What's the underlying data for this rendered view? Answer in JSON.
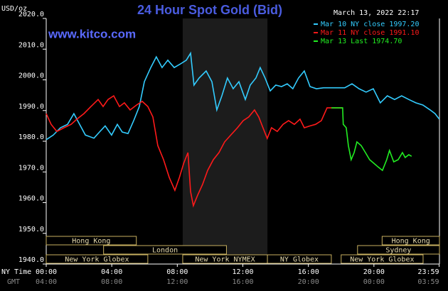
{
  "chart_data": {
    "type": "line",
    "title": "24 Hour Spot Gold (Bid)",
    "unit_label": "USD/oz",
    "timestamp": "March 13, 2022 22:17",
    "site": "www.kitco.com",
    "x_axis_labels": [
      "NY Time",
      "GMT"
    ],
    "xlim": [
      0,
      24
    ],
    "ylim": [
      1940,
      2020
    ],
    "yticks": [
      {
        "value": 2020,
        "label": "2020.0"
      },
      {
        "value": 2010,
        "label": "2010.0"
      },
      {
        "value": 2000,
        "label": "2000.0"
      },
      {
        "value": 1990,
        "label": "1990.0"
      },
      {
        "value": 1980,
        "label": "1980.0"
      },
      {
        "value": 1970,
        "label": "1970.0"
      },
      {
        "value": 1960,
        "label": "1960.0"
      },
      {
        "value": 1950,
        "label": "1950.0"
      },
      {
        "value": 1940,
        "label": "1940.0"
      }
    ],
    "xticks": [
      {
        "value": 0,
        "label": "00:00"
      },
      {
        "value": 4,
        "label": "04:00"
      },
      {
        "value": 8,
        "label": "08:00"
      },
      {
        "value": 12,
        "label": "12:00"
      },
      {
        "value": 16,
        "label": "16:00"
      },
      {
        "value": 20,
        "label": "20:00"
      },
      {
        "value": 23.98,
        "label": "23:59"
      }
    ],
    "x2ticks": [
      {
        "value": 0,
        "label": "04:00"
      },
      {
        "value": 4,
        "label": "08:00"
      },
      {
        "value": 8,
        "label": "12:00"
      },
      {
        "value": 12,
        "label": "16:00"
      },
      {
        "value": 16,
        "label": "20:00"
      },
      {
        "value": 20,
        "label": "00:00"
      },
      {
        "value": 23.98,
        "label": "03:59"
      }
    ],
    "highlight_x": [
      8.33,
      13.5
    ],
    "session_rows": [
      [
        {
          "label": "Hong Kong",
          "start": 0,
          "end": 5.5
        },
        {
          "label": "Hong Kong",
          "start": 20.5,
          "end": 24
        }
      ],
      [
        {
          "label": "London",
          "start": 3.5,
          "end": 11
        },
        {
          "label": "Sydney",
          "start": 19,
          "end": 24
        }
      ],
      [
        {
          "label": "New York Globex",
          "start": 0,
          "end": 6.2
        },
        {
          "label": "New York NYMEX",
          "start": 8.33,
          "end": 13.5
        },
        {
          "label": "NY Globex",
          "start": 13.5,
          "end": 17.4
        },
        {
          "label": "New York Globex",
          "start": 18,
          "end": 23
        }
      ]
    ],
    "series": [
      {
        "name": "Mar 10 NY close 1997.20",
        "color": "#33ccff",
        "x": [
          0,
          0.43,
          0.87,
          1.3,
          1.69,
          2.04,
          2.39,
          2.91,
          3.25,
          3.6,
          3.99,
          4.34,
          4.64,
          4.99,
          5.34,
          5.68,
          5.99,
          6.38,
          6.72,
          7.07,
          7.42,
          7.81,
          8.2,
          8.55,
          8.81,
          9.02,
          9.33,
          9.76,
          10.11,
          10.41,
          10.72,
          11.06,
          11.41,
          11.76,
          12.15,
          12.45,
          12.8,
          13.06,
          13.36,
          13.67,
          14.01,
          14.36,
          14.71,
          15.05,
          15.4,
          15.75,
          16.1,
          16.49,
          16.92,
          18.22,
          18.66,
          19.09,
          19.52,
          19.96,
          20.39,
          20.82,
          21.26,
          21.69,
          22.13,
          22.56,
          22.99,
          23.43,
          23.73,
          23.99
        ],
        "values": [
          1980.5,
          1982,
          1984.4,
          1985.5,
          1989,
          1985.5,
          1982,
          1981,
          1983,
          1985,
          1982,
          1985.5,
          1983,
          1982.5,
          1986.7,
          1991.3,
          1999.4,
          2004,
          2007.5,
          2004,
          2006.4,
          2004,
          2005.2,
          2006.4,
          2008.7,
          1998.3,
          2000.6,
          2002.9,
          1999.4,
          1990.2,
          1994.8,
          2000.6,
          1997.1,
          1999.4,
          1993.6,
          1998.3,
          2000.6,
          2004,
          2000.6,
          1996.4,
          1998.3,
          1997.8,
          1998.7,
          1997.1,
          2000.6,
          2002.9,
          1997.8,
          1997.1,
          1997.4,
          1997.4,
          1998.7,
          1997.1,
          1996,
          1997.1,
          1992.5,
          1994.8,
          1993.6,
          1994.8,
          1993.6,
          1992.5,
          1991.8,
          1990.2,
          1989,
          1987.2
        ]
      },
      {
        "name": "Mar 11 NY close 1991.10",
        "color": "#ff1a1a",
        "x": [
          0,
          0.3,
          0.65,
          1.08,
          1.52,
          1.87,
          2.3,
          2.73,
          3.17,
          3.47,
          3.77,
          4.12,
          4.47,
          4.77,
          5.12,
          5.51,
          5.86,
          6.2,
          6.51,
          6.81,
          7.16,
          7.51,
          7.85,
          8.13,
          8.39,
          8.65,
          8.81,
          8.98,
          9.24,
          9.54,
          9.85,
          10.2,
          10.54,
          10.89,
          11.28,
          11.67,
          12.02,
          12.36,
          12.71,
          12.97,
          13.23,
          13.49,
          13.75,
          14.1,
          14.45,
          14.79,
          15.14,
          15.49,
          15.75,
          16.1,
          16.44,
          16.79,
          17.14,
          17.48,
          18.09
        ],
        "values": [
          1989,
          1985.5,
          1983.2,
          1984.4,
          1985.5,
          1987.2,
          1989,
          1991.3,
          1993.6,
          1991.3,
          1993.6,
          1994.8,
          1991.3,
          1992.5,
          1990.2,
          1991.8,
          1993,
          1991.3,
          1987.9,
          1978.6,
          1974,
          1968.2,
          1964,
          1968.2,
          1972.8,
          1976.3,
          1963.6,
          1959,
          1962.4,
          1965.9,
          1970.5,
          1974,
          1976.3,
          1979.8,
          1982.1,
          1984.4,
          1986.7,
          1987.9,
          1990.2,
          1987.9,
          1984.4,
          1980.9,
          1984.4,
          1983.2,
          1985.5,
          1986.7,
          1985.5,
          1987.2,
          1984.4,
          1985,
          1985.5,
          1986.7,
          1990.9,
          1990.9,
          1990.9
        ]
      },
      {
        "name": "Mar 13 Last 1974.70",
        "color": "#22ee22",
        "x": [
          17.4,
          18.09,
          18.13,
          18.31,
          18.44,
          18.61,
          18.79,
          18.96,
          19.22,
          19.48,
          19.74,
          20,
          20.26,
          20.52,
          20.78,
          20.95,
          21.21,
          21.48,
          21.74,
          21.91,
          22.13,
          22.3
        ],
        "values": [
          1990.9,
          1990.9,
          1985.5,
          1984.4,
          1978.6,
          1974,
          1976.3,
          1979.8,
          1978.6,
          1976.3,
          1974,
          1972.8,
          1971.6,
          1970.5,
          1974,
          1977,
          1973.3,
          1974,
          1976.3,
          1974.7,
          1975.6,
          1975.1
        ]
      }
    ]
  }
}
